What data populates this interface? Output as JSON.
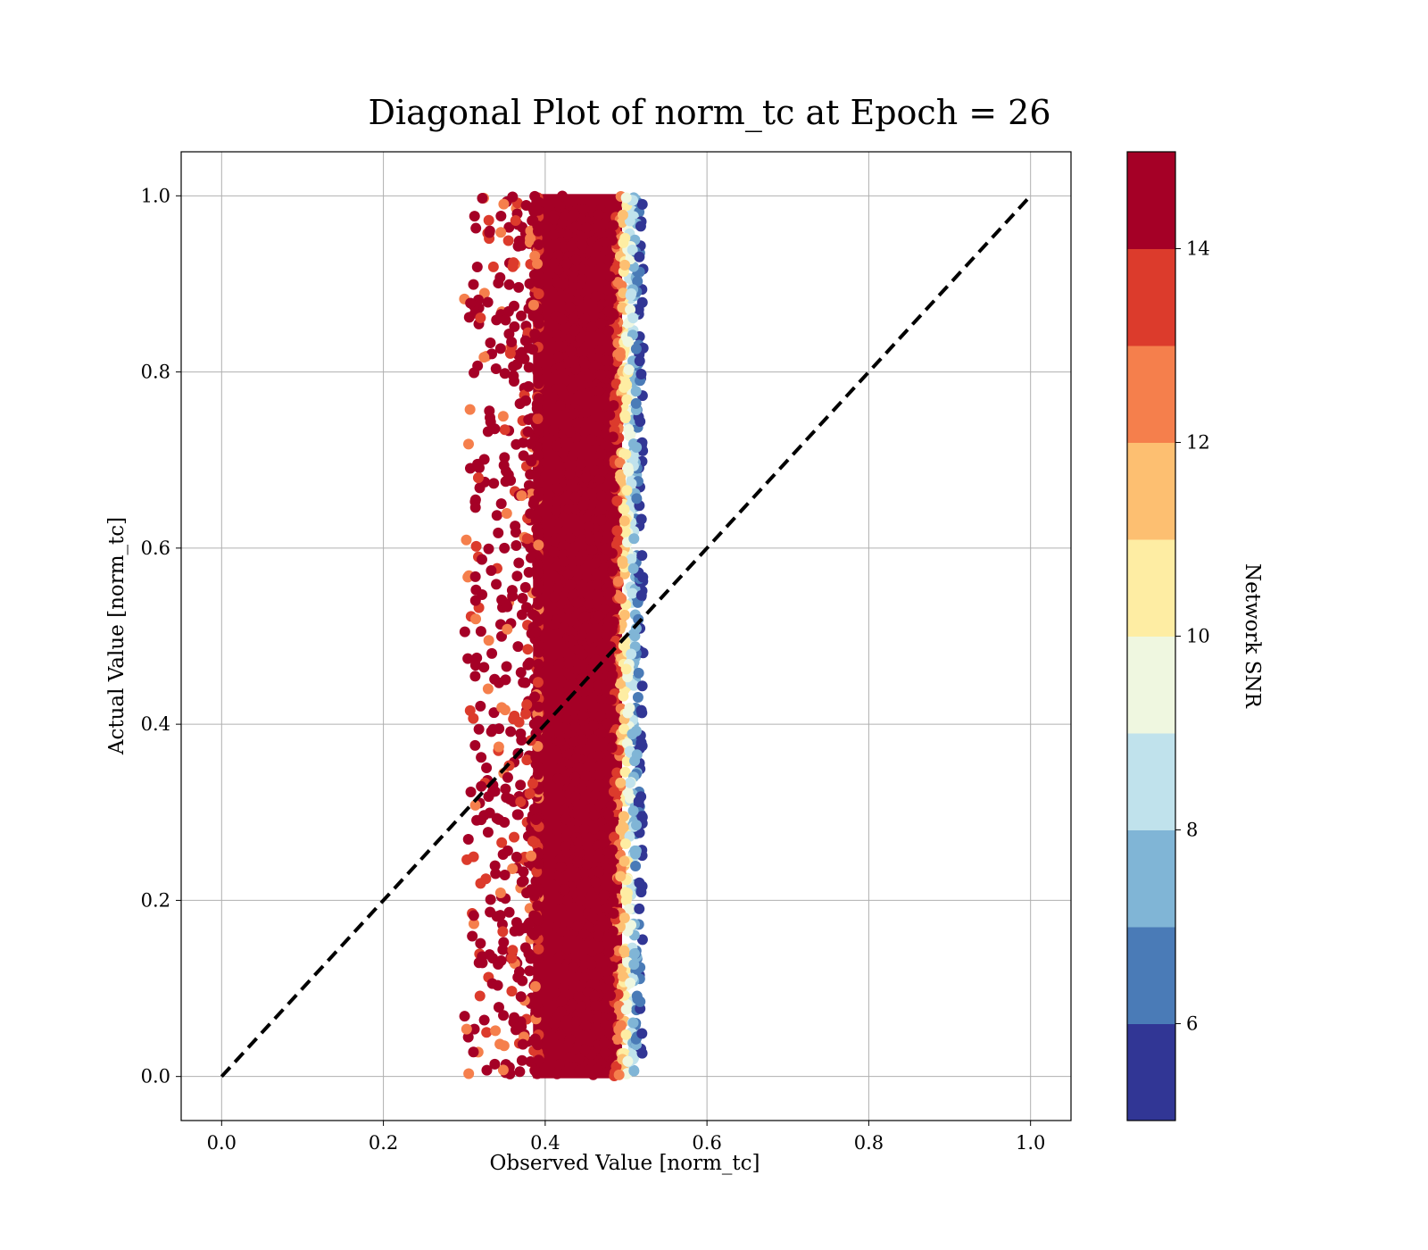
{
  "chart_data": {
    "type": "scatter",
    "title": "Diagonal Plot of norm_tc at Epoch = 26",
    "xlabel": "Observed Value [norm_tc]",
    "ylabel": "Actual Value [norm_tc]",
    "xlim": [
      -0.05,
      1.05
    ],
    "ylim": [
      -0.05,
      1.05
    ],
    "xticks": [
      "0.0",
      "0.2",
      "0.4",
      "0.6",
      "0.8",
      "1.0"
    ],
    "yticks": [
      "0.0",
      "0.2",
      "0.4",
      "0.6",
      "0.8",
      "1.0"
    ],
    "grid": true,
    "reference_line": {
      "x": [
        0.0,
        1.0
      ],
      "y": [
        0.0,
        1.0
      ],
      "style": "dashed",
      "color": "#000000"
    },
    "colorbar": {
      "label": "Network SNR",
      "range": [
        5,
        15
      ],
      "ticks": [
        "6",
        "8",
        "10",
        "12",
        "14"
      ],
      "colors": [
        "#313695",
        "#4575b4",
        "#74add1",
        "#abd9e9",
        "#e0f3f8",
        "#fee090",
        "#fdae61",
        "#f46d43",
        "#d73027",
        "#a50026"
      ],
      "colors_display": [
        "#313695",
        "#4a7bb7",
        "#80b5d6",
        "#c0e2ec",
        "#eff7e0",
        "#feeda3",
        "#fdbf71",
        "#f57f4c",
        "#dc3b2c",
        "#a50026"
      ]
    },
    "scatter_summary": {
      "x_range": [
        0.3,
        0.52
      ],
      "x_core": [
        0.38,
        0.5
      ],
      "y_range": [
        0.0,
        1.0
      ],
      "dominant_snr": "high (>14)",
      "low_snr_edge_x": 0.51
    }
  }
}
